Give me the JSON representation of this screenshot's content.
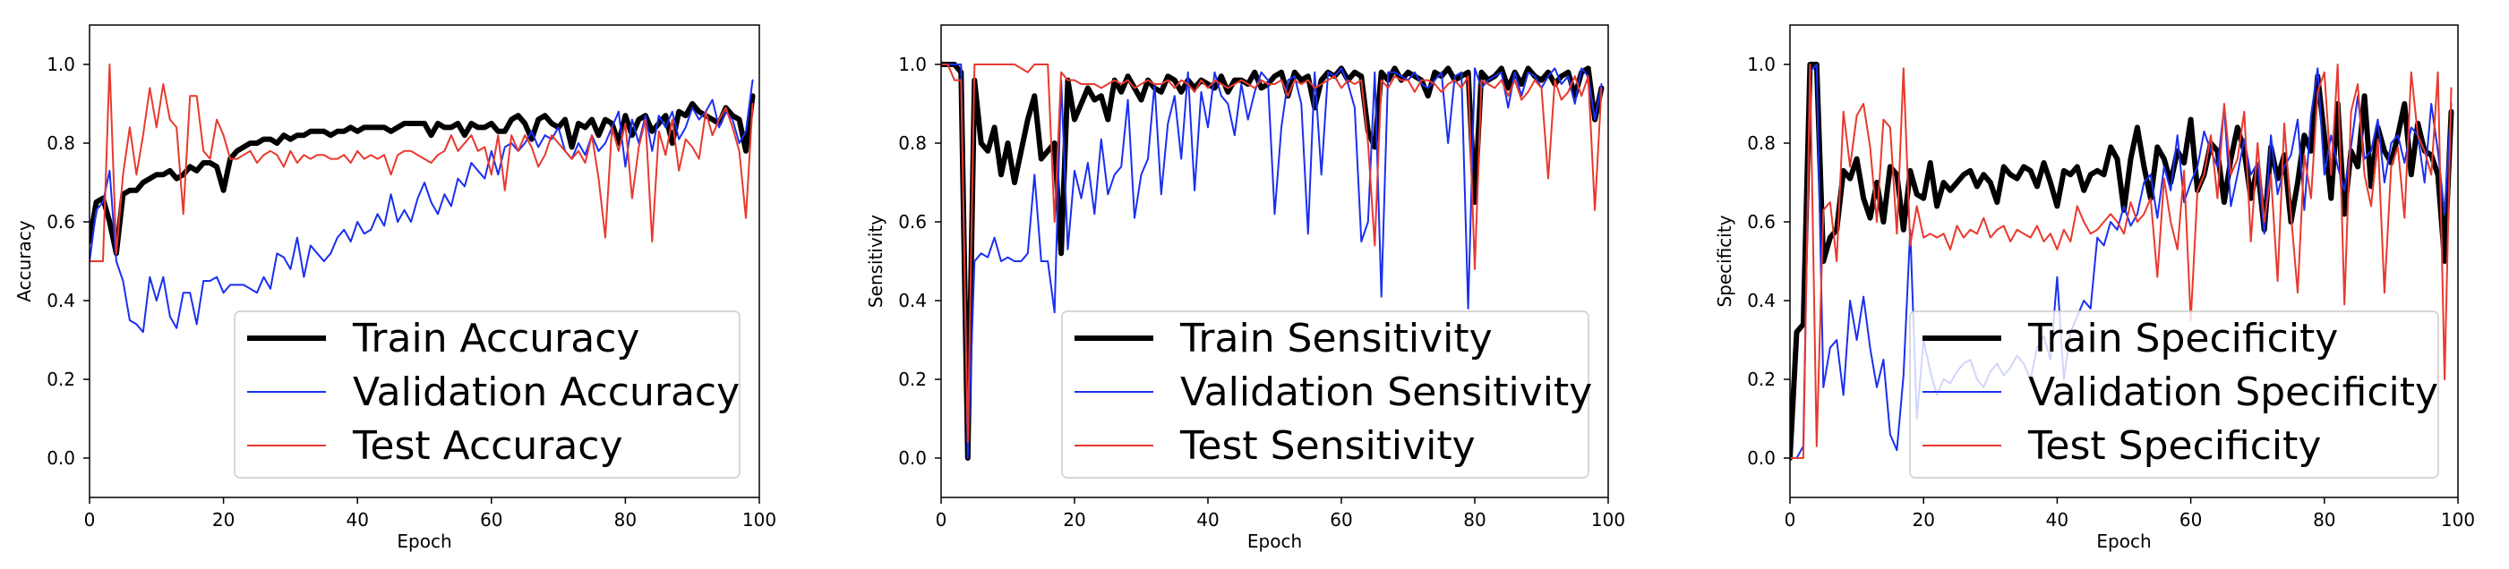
{
  "chart_data": [
    {
      "type": "line",
      "title": "",
      "xlabel": "Epoch",
      "ylabel": "Accuracy",
      "xlim": [
        0,
        100
      ],
      "ylim": [
        -0.1,
        1.1
      ],
      "xticks": [
        0,
        20,
        40,
        60,
        80,
        100
      ],
      "yticks": [
        0.0,
        0.2,
        0.4,
        0.6,
        0.8,
        1.0
      ],
      "grid": false,
      "legend_position": "bottom-right",
      "series": [
        {
          "name": "Train Accuracy",
          "color": "#000000",
          "values": [
            0.55,
            0.65,
            0.66,
            0.6,
            0.52,
            0.67,
            0.68,
            0.68,
            0.7,
            0.71,
            0.72,
            0.72,
            0.73,
            0.71,
            0.72,
            0.74,
            0.73,
            0.75,
            0.75,
            0.74,
            0.68,
            0.76,
            0.78,
            0.79,
            0.8,
            0.8,
            0.81,
            0.81,
            0.8,
            0.82,
            0.81,
            0.82,
            0.82,
            0.83,
            0.83,
            0.83,
            0.82,
            0.83,
            0.83,
            0.84,
            0.83,
            0.84,
            0.84,
            0.84,
            0.84,
            0.83,
            0.84,
            0.85,
            0.85,
            0.85,
            0.85,
            0.82,
            0.85,
            0.84,
            0.84,
            0.85,
            0.82,
            0.85,
            0.84,
            0.84,
            0.85,
            0.83,
            0.83,
            0.86,
            0.87,
            0.85,
            0.81,
            0.86,
            0.87,
            0.85,
            0.84,
            0.86,
            0.79,
            0.85,
            0.84,
            0.86,
            0.82,
            0.86,
            0.85,
            0.8,
            0.87,
            0.82,
            0.86,
            0.87,
            0.83,
            0.85,
            0.87,
            0.8,
            0.88,
            0.87,
            0.9,
            0.88,
            0.87,
            0.86,
            0.85,
            0.89,
            0.87,
            0.86,
            0.78,
            0.92
          ]
        },
        {
          "name": "Validation Accuracy",
          "color": "#1a2ff0",
          "values": [
            0.5,
            0.63,
            0.65,
            0.73,
            0.5,
            0.45,
            0.35,
            0.34,
            0.32,
            0.46,
            0.4,
            0.46,
            0.36,
            0.33,
            0.42,
            0.42,
            0.34,
            0.45,
            0.45,
            0.46,
            0.42,
            0.44,
            0.44,
            0.44,
            0.43,
            0.42,
            0.46,
            0.43,
            0.52,
            0.51,
            0.48,
            0.56,
            0.46,
            0.54,
            0.52,
            0.5,
            0.52,
            0.56,
            0.58,
            0.55,
            0.6,
            0.57,
            0.58,
            0.62,
            0.59,
            0.67,
            0.6,
            0.63,
            0.6,
            0.66,
            0.7,
            0.65,
            0.62,
            0.67,
            0.64,
            0.71,
            0.69,
            0.75,
            0.73,
            0.71,
            0.78,
            0.72,
            0.79,
            0.8,
            0.78,
            0.8,
            0.83,
            0.79,
            0.82,
            0.81,
            0.84,
            0.78,
            0.76,
            0.8,
            0.77,
            0.82,
            0.78,
            0.8,
            0.84,
            0.88,
            0.74,
            0.86,
            0.8,
            0.87,
            0.78,
            0.87,
            0.84,
            0.88,
            0.81,
            0.84,
            0.89,
            0.86,
            0.88,
            0.91,
            0.84,
            0.88,
            0.86,
            0.8,
            0.83,
            0.96
          ]
        },
        {
          "name": "Test Accuracy",
          "color": "#e8392e",
          "values": [
            0.5,
            0.5,
            0.5,
            1.0,
            0.52,
            0.72,
            0.84,
            0.72,
            0.82,
            0.94,
            0.84,
            0.95,
            0.86,
            0.84,
            0.62,
            0.92,
            0.92,
            0.78,
            0.76,
            0.86,
            0.82,
            0.76,
            0.76,
            0.77,
            0.78,
            0.75,
            0.77,
            0.78,
            0.77,
            0.74,
            0.78,
            0.75,
            0.77,
            0.76,
            0.77,
            0.77,
            0.76,
            0.76,
            0.77,
            0.75,
            0.78,
            0.76,
            0.77,
            0.76,
            0.77,
            0.72,
            0.77,
            0.78,
            0.78,
            0.77,
            0.76,
            0.75,
            0.77,
            0.78,
            0.82,
            0.78,
            0.8,
            0.82,
            0.78,
            0.79,
            0.72,
            0.82,
            0.68,
            0.82,
            0.78,
            0.82,
            0.79,
            0.74,
            0.77,
            0.82,
            0.8,
            0.78,
            0.76,
            0.78,
            0.75,
            0.82,
            0.71,
            0.56,
            0.84,
            0.78,
            0.85,
            0.66,
            0.79,
            0.86,
            0.55,
            0.83,
            0.77,
            0.86,
            0.73,
            0.81,
            0.79,
            0.76,
            0.88,
            0.82,
            0.86,
            0.89,
            0.84,
            0.78,
            0.61,
            0.9
          ]
        }
      ]
    },
    {
      "type": "line",
      "title": "",
      "xlabel": "Epoch",
      "ylabel": "Sensitivity",
      "xlim": [
        0,
        100
      ],
      "ylim": [
        -0.1,
        1.1
      ],
      "xticks": [
        0,
        20,
        40,
        60,
        80,
        100
      ],
      "yticks": [
        0.0,
        0.2,
        0.4,
        0.6,
        0.8,
        1.0
      ],
      "grid": false,
      "legend_position": "bottom-right",
      "series": [
        {
          "name": "Train Sensitivity",
          "color": "#000000",
          "values": [
            1.0,
            1.0,
            1.0,
            0.98,
            0.0,
            0.96,
            0.8,
            0.78,
            0.84,
            0.72,
            0.8,
            0.7,
            0.78,
            0.86,
            0.92,
            0.76,
            0.78,
            0.8,
            0.52,
            0.96,
            0.86,
            0.9,
            0.94,
            0.91,
            0.92,
            0.86,
            0.96,
            0.93,
            0.97,
            0.94,
            0.91,
            0.96,
            0.94,
            0.93,
            0.97,
            0.96,
            0.93,
            0.96,
            0.94,
            0.96,
            0.95,
            0.94,
            0.97,
            0.93,
            0.96,
            0.96,
            0.95,
            0.98,
            0.94,
            0.95,
            0.97,
            0.98,
            0.92,
            0.98,
            0.96,
            0.97,
            0.89,
            0.96,
            0.98,
            0.97,
            0.99,
            0.96,
            0.98,
            0.97,
            0.83,
            0.79,
            0.98,
            0.96,
            0.99,
            0.96,
            0.98,
            0.97,
            0.96,
            0.92,
            0.98,
            0.97,
            0.99,
            0.96,
            0.97,
            0.98,
            0.65,
            0.98,
            0.96,
            0.97,
            0.99,
            0.94,
            0.98,
            0.95,
            0.99,
            0.97,
            0.96,
            0.98,
            0.95,
            0.97,
            0.98,
            0.92,
            0.98,
            0.99,
            0.86,
            0.94
          ]
        },
        {
          "name": "Validation Sensitivity",
          "color": "#1a2ff0",
          "values": [
            1.0,
            1.0,
            1.0,
            1.0,
            0.0,
            0.5,
            0.52,
            0.51,
            0.56,
            0.5,
            0.51,
            0.5,
            0.5,
            0.52,
            0.72,
            0.5,
            0.5,
            0.37,
            0.96,
            0.53,
            0.73,
            0.66,
            0.75,
            0.62,
            0.81,
            0.67,
            0.72,
            0.74,
            0.91,
            0.61,
            0.72,
            0.76,
            0.95,
            0.67,
            0.85,
            0.92,
            0.76,
            0.98,
            0.68,
            0.93,
            0.84,
            0.98,
            0.92,
            0.9,
            0.82,
            0.95,
            0.86,
            0.93,
            0.98,
            0.96,
            0.62,
            0.84,
            0.96,
            0.97,
            0.9,
            0.57,
            0.98,
            0.72,
            0.98,
            0.97,
            0.99,
            0.95,
            0.89,
            0.55,
            0.6,
            0.98,
            0.41,
            0.98,
            0.98,
            0.97,
            0.96,
            0.98,
            0.95,
            0.94,
            0.96,
            0.98,
            0.8,
            0.97,
            0.98,
            0.38,
            0.99,
            0.94,
            0.96,
            0.97,
            0.98,
            0.89,
            0.98,
            0.92,
            0.98,
            0.97,
            0.94,
            0.97,
            0.99,
            0.95,
            0.97,
            0.9,
            0.99,
            0.97,
            0.86,
            0.95
          ]
        },
        {
          "name": "Test Sensitivity",
          "color": "#e8392e",
          "values": [
            1.0,
            1.0,
            0.96,
            0.96,
            0.04,
            1.0,
            1.0,
            1.0,
            1.0,
            1.0,
            1.0,
            1.0,
            0.99,
            0.98,
            1.0,
            1.0,
            1.0,
            0.6,
            0.98,
            0.96,
            0.96,
            0.95,
            0.95,
            0.95,
            0.94,
            0.95,
            0.96,
            0.95,
            0.96,
            0.94,
            0.95,
            0.96,
            0.95,
            0.95,
            0.96,
            0.94,
            0.96,
            0.95,
            0.93,
            0.96,
            0.94,
            0.96,
            0.95,
            0.94,
            0.95,
            0.96,
            0.95,
            0.94,
            0.96,
            0.95,
            0.95,
            0.96,
            0.92,
            0.96,
            0.95,
            0.96,
            0.94,
            0.95,
            0.96,
            0.97,
            0.94,
            0.96,
            0.95,
            0.96,
            0.8,
            0.54,
            0.96,
            0.94,
            0.97,
            0.96,
            0.96,
            0.93,
            0.96,
            0.96,
            0.95,
            0.93,
            0.95,
            0.96,
            0.94,
            0.97,
            0.48,
            0.96,
            0.95,
            0.94,
            0.96,
            0.92,
            0.96,
            0.91,
            0.93,
            0.96,
            0.94,
            0.71,
            0.96,
            0.91,
            0.93,
            0.97,
            0.92,
            0.97,
            0.63,
            0.94
          ]
        }
      ]
    },
    {
      "type": "line",
      "title": "",
      "xlabel": "Epoch",
      "ylabel": "Specificity",
      "xlim": [
        0,
        100
      ],
      "ylim": [
        -0.1,
        1.1
      ],
      "xticks": [
        0,
        20,
        40,
        60,
        80,
        100
      ],
      "yticks": [
        0.0,
        0.2,
        0.4,
        0.6,
        0.8,
        1.0
      ],
      "grid": false,
      "legend_position": "bottom-right",
      "series": [
        {
          "name": "Train Specificity",
          "color": "#000000",
          "values": [
            0.0,
            0.32,
            0.34,
            1.0,
            1.0,
            0.5,
            0.56,
            0.58,
            0.73,
            0.71,
            0.76,
            0.66,
            0.61,
            0.7,
            0.6,
            0.74,
            0.72,
            0.58,
            0.73,
            0.67,
            0.66,
            0.75,
            0.64,
            0.7,
            0.68,
            0.7,
            0.72,
            0.73,
            0.69,
            0.72,
            0.7,
            0.65,
            0.74,
            0.72,
            0.71,
            0.74,
            0.73,
            0.69,
            0.75,
            0.7,
            0.64,
            0.73,
            0.72,
            0.74,
            0.68,
            0.72,
            0.73,
            0.72,
            0.79,
            0.76,
            0.63,
            0.76,
            0.84,
            0.74,
            0.66,
            0.79,
            0.76,
            0.7,
            0.78,
            0.75,
            0.86,
            0.68,
            0.72,
            0.8,
            0.78,
            0.65,
            0.76,
            0.84,
            0.78,
            0.66,
            0.74,
            0.58,
            0.79,
            0.71,
            0.77,
            0.6,
            0.7,
            0.82,
            0.78,
            0.97,
            0.82,
            0.66,
            0.9,
            0.62,
            0.78,
            0.74,
            0.92,
            0.69,
            0.84,
            0.78,
            0.75,
            0.82,
            0.9,
            0.72,
            0.85,
            0.78,
            0.77,
            0.72,
            0.5,
            0.88
          ]
        },
        {
          "name": "Validation Specificity",
          "color": "#1a2ff0",
          "values": [
            0.0,
            0.0,
            0.03,
            0.98,
            1.0,
            0.18,
            0.28,
            0.3,
            0.16,
            0.4,
            0.3,
            0.41,
            0.28,
            0.18,
            0.25,
            0.06,
            0.02,
            0.21,
            0.58,
            0.1,
            0.3,
            0.22,
            0.16,
            0.2,
            0.19,
            0.22,
            0.24,
            0.25,
            0.2,
            0.18,
            0.22,
            0.24,
            0.21,
            0.23,
            0.26,
            0.24,
            0.2,
            0.28,
            0.31,
            0.25,
            0.46,
            0.2,
            0.32,
            0.36,
            0.4,
            0.38,
            0.56,
            0.54,
            0.6,
            0.58,
            0.64,
            0.59,
            0.62,
            0.7,
            0.72,
            0.61,
            0.74,
            0.68,
            0.82,
            0.65,
            0.7,
            0.74,
            0.83,
            0.78,
            0.74,
            0.89,
            0.64,
            0.72,
            0.81,
            0.72,
            0.75,
            0.57,
            0.82,
            0.67,
            0.74,
            0.77,
            0.86,
            0.63,
            0.87,
            0.99,
            0.72,
            0.82,
            0.74,
            0.68,
            0.79,
            0.92,
            0.76,
            0.78,
            0.86,
            0.7,
            0.8,
            0.82,
            0.75,
            0.84,
            0.82,
            0.7,
            0.9,
            0.78,
            0.62,
            0.9
          ]
        },
        {
          "name": "Test Specificity",
          "color": "#e8392e",
          "values": [
            0.0,
            0.0,
            0.0,
            1.0,
            0.03,
            0.63,
            0.65,
            0.5,
            0.88,
            0.74,
            0.87,
            0.9,
            0.79,
            0.6,
            0.86,
            0.84,
            0.57,
            0.99,
            0.54,
            0.64,
            0.56,
            0.57,
            0.56,
            0.57,
            0.53,
            0.59,
            0.56,
            0.58,
            0.57,
            0.61,
            0.56,
            0.58,
            0.59,
            0.55,
            0.58,
            0.57,
            0.56,
            0.59,
            0.55,
            0.57,
            0.53,
            0.58,
            0.55,
            0.64,
            0.6,
            0.57,
            0.58,
            0.6,
            0.62,
            0.6,
            0.57,
            0.65,
            0.6,
            0.62,
            0.66,
            0.46,
            0.71,
            0.6,
            0.53,
            0.73,
            0.35,
            0.68,
            0.72,
            0.82,
            0.66,
            0.9,
            0.72,
            0.76,
            0.88,
            0.55,
            0.8,
            0.6,
            0.72,
            0.45,
            0.85,
            0.62,
            0.42,
            0.77,
            0.66,
            0.93,
            0.98,
            0.72,
            1.0,
            0.39,
            0.88,
            0.95,
            0.72,
            0.64,
            0.81,
            0.42,
            0.74,
            0.79,
            0.61,
            0.98,
            0.82,
            0.78,
            0.72,
            0.98,
            0.2,
            0.94
          ]
        }
      ]
    }
  ]
}
